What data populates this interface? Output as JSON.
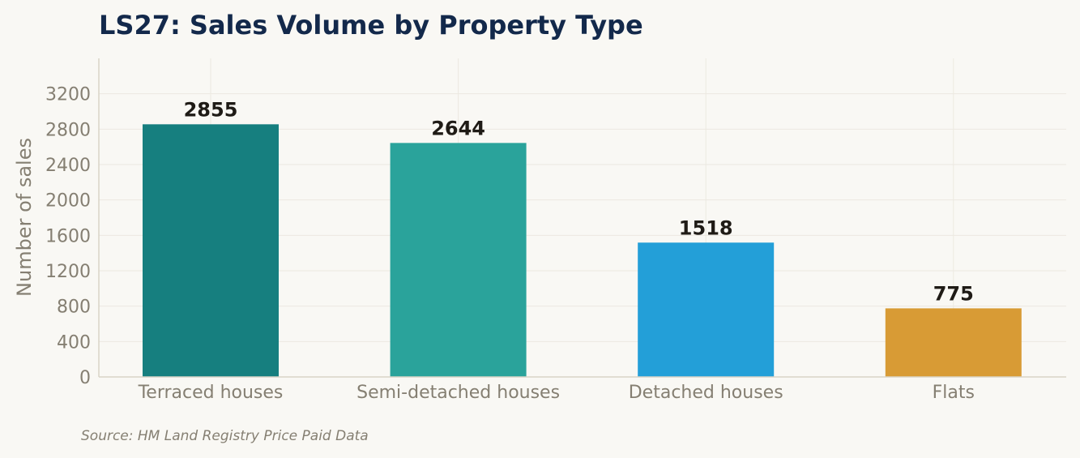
{
  "chart_data": {
    "type": "bar",
    "title": "LS27: Sales Volume by Property Type",
    "xlabel": "",
    "ylabel": "Number of sales",
    "categories": [
      "Terraced houses",
      "Semi-detached houses",
      "Detached houses",
      "Flats"
    ],
    "values": [
      2855,
      2644,
      1518,
      775
    ],
    "data_labels": [
      "2855",
      "2644",
      "1518",
      "775"
    ],
    "colors": [
      "#167f7f",
      "#2aa39b",
      "#239fd8",
      "#d89b35"
    ],
    "ylim": [
      0,
      3600
    ],
    "yticks": [
      0,
      400,
      800,
      1200,
      1600,
      2000,
      2400,
      2800,
      3200
    ],
    "ytick_labels": [
      "0",
      "400",
      "800",
      "1200",
      "1600",
      "2000",
      "2400",
      "2800",
      "3200"
    ],
    "grid": true,
    "legend": "none"
  },
  "source_note": "Source: HM Land Registry Price Paid Data"
}
